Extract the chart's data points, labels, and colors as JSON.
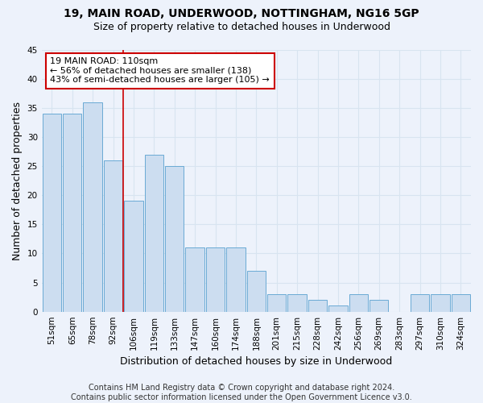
{
  "title1": "19, MAIN ROAD, UNDERWOOD, NOTTINGHAM, NG16 5GP",
  "title2": "Size of property relative to detached houses in Underwood",
  "xlabel": "Distribution of detached houses by size in Underwood",
  "ylabel": "Number of detached properties",
  "categories": [
    "51sqm",
    "65sqm",
    "78sqm",
    "92sqm",
    "106sqm",
    "119sqm",
    "133sqm",
    "147sqm",
    "160sqm",
    "174sqm",
    "188sqm",
    "201sqm",
    "215sqm",
    "228sqm",
    "242sqm",
    "256sqm",
    "269sqm",
    "283sqm",
    "297sqm",
    "310sqm",
    "324sqm"
  ],
  "values": [
    34,
    34,
    36,
    26,
    19,
    27,
    25,
    11,
    11,
    11,
    7,
    3,
    3,
    2,
    1,
    3,
    2,
    0,
    3,
    3,
    3
  ],
  "bar_color": "#ccddf0",
  "bar_edge_color": "#6aaad4",
  "vline_x": 3.5,
  "vline_color": "#cc0000",
  "annotation_text": "19 MAIN ROAD: 110sqm\n← 56% of detached houses are smaller (138)\n43% of semi-detached houses are larger (105) →",
  "annotation_box_color": "white",
  "annotation_box_edge": "#cc0000",
  "ylim": [
    0,
    45
  ],
  "yticks": [
    0,
    5,
    10,
    15,
    20,
    25,
    30,
    35,
    40,
    45
  ],
  "footer": "Contains HM Land Registry data © Crown copyright and database right 2024.\nContains public sector information licensed under the Open Government Licence v3.0.",
  "bg_color": "#edf2fb",
  "grid_color": "#d8e4f0",
  "title_fontsize": 10,
  "subtitle_fontsize": 9,
  "xlabel_fontsize": 9,
  "ylabel_fontsize": 9,
  "tick_fontsize": 7.5,
  "annot_fontsize": 8,
  "footer_fontsize": 7
}
